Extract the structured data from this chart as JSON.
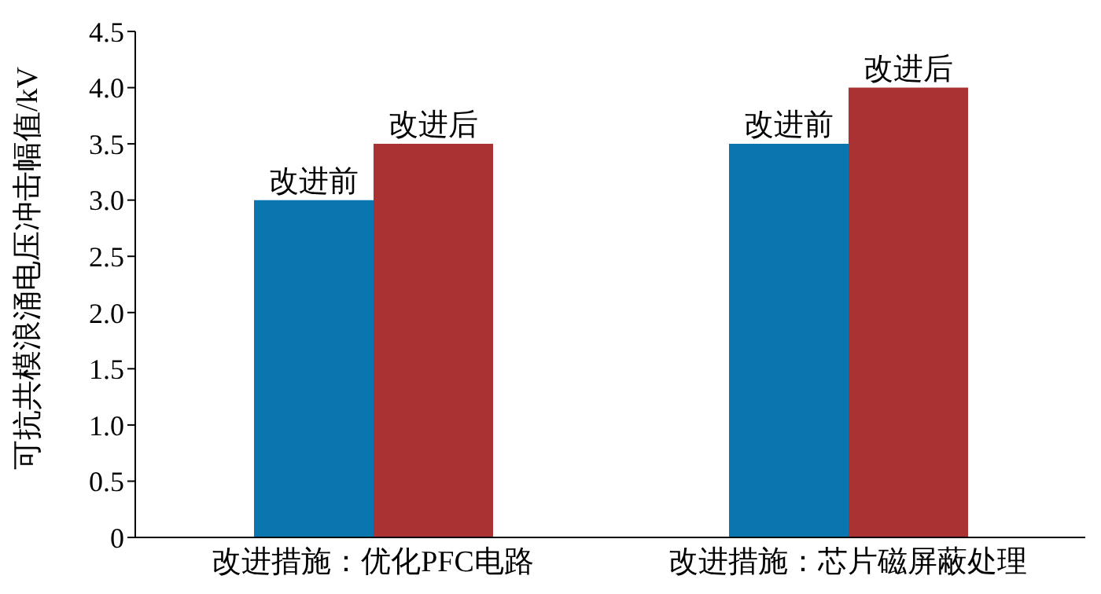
{
  "chart_data": {
    "type": "bar",
    "ylabel": "可抗共模浪涌电压冲击幅值/kV",
    "categories": [
      "改进措施：优化PFC电路",
      "改进措施：芯片磁屏蔽处理"
    ],
    "series": [
      {
        "name": "改进前",
        "color": "#0a76b0",
        "values": [
          3.0,
          3.5
        ]
      },
      {
        "name": "改进后",
        "color": "#ab3232",
        "values": [
          3.5,
          4.0
        ]
      }
    ],
    "ylim": [
      0,
      4.5
    ],
    "yticks": [
      0,
      {
        "value": 0.5,
        "label": "0.5"
      },
      {
        "value": 1,
        "label": "1.0"
      },
      {
        "value": 1.5,
        "label": "1.5"
      },
      {
        "value": 2,
        "label": "2.0"
      },
      {
        "value": 2.5,
        "label": "2.5"
      },
      {
        "value": 3,
        "label": "3.0"
      },
      {
        "value": 3.5,
        "label": "3.5"
      },
      {
        "value": 4,
        "label": "4.0"
      },
      {
        "value": 4.5,
        "label": "4.5"
      }
    ],
    "grid": false,
    "legend": false
  }
}
